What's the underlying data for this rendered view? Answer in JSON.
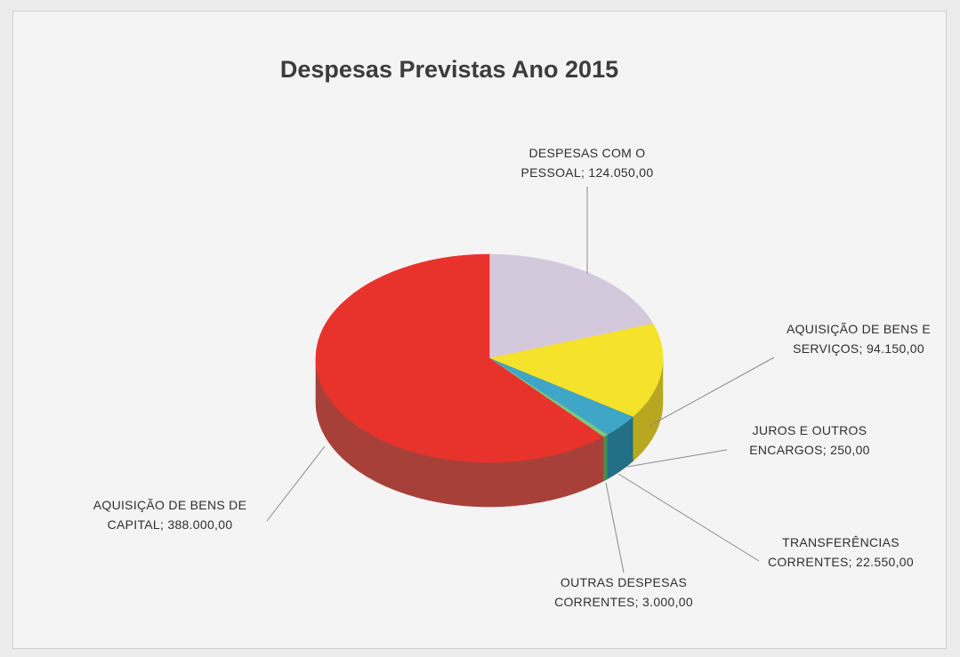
{
  "chart_data": {
    "type": "pie",
    "title": "Despesas Previstas Ano 2015",
    "slices": [
      {
        "label": "DESPESAS COM O PESSOAL",
        "value": 124050.0,
        "value_text": "124.050,00",
        "color": "#d4c8dc",
        "side_color": "#9e94a6"
      },
      {
        "label": "AQUISIÇÃO DE BENS E SERVIÇOS",
        "value": 94150.0,
        "value_text": "94.150,00",
        "color": "#f5e22a",
        "side_color": "#b8a820"
      },
      {
        "label": "JUROS E OUTROS ENCARGOS",
        "value": 250.0,
        "value_text": "250,00",
        "color": "#2e8aa6",
        "side_color": "#1f6075"
      },
      {
        "label": "TRANSFERÊNCIAS CORRENTES",
        "value": 22550.0,
        "value_text": "22.550,00",
        "color": "#3fa6c8",
        "side_color": "#236f85"
      },
      {
        "label": "OUTRAS DESPESAS CORRENTES",
        "value": 3000.0,
        "value_text": "3.000,00",
        "color": "#7ec87a",
        "side_color": "#4f8a4c"
      },
      {
        "label": "AQUISIÇÃO DE BENS DE CAPITAL",
        "value": 388000.0,
        "value_text": "388.000,00",
        "color": "#e8332c",
        "side_color": "#a8403a"
      }
    ],
    "data_labels": [
      {
        "lines": [
          "DESPESAS COM O",
          "PESSOAL; 124.050,00"
        ]
      },
      {
        "lines": [
          "AQUISIÇÃO DE BENS E",
          "SERVIÇOS; 94.150,00"
        ]
      },
      {
        "lines": [
          "JUROS E OUTROS",
          "ENCARGOS; 250,00"
        ]
      },
      {
        "lines": [
          "TRANSFERÊNCIAS",
          "CORRENTES; 22.550,00"
        ]
      },
      {
        "lines": [
          "OUTRAS DESPESAS",
          "CORRENTES; 3.000,00"
        ]
      },
      {
        "lines": [
          "AQUISIÇÃO DE BENS DE",
          "CAPITAL; 388.000,00"
        ]
      }
    ],
    "legend": "none",
    "style": "3d-pie"
  }
}
